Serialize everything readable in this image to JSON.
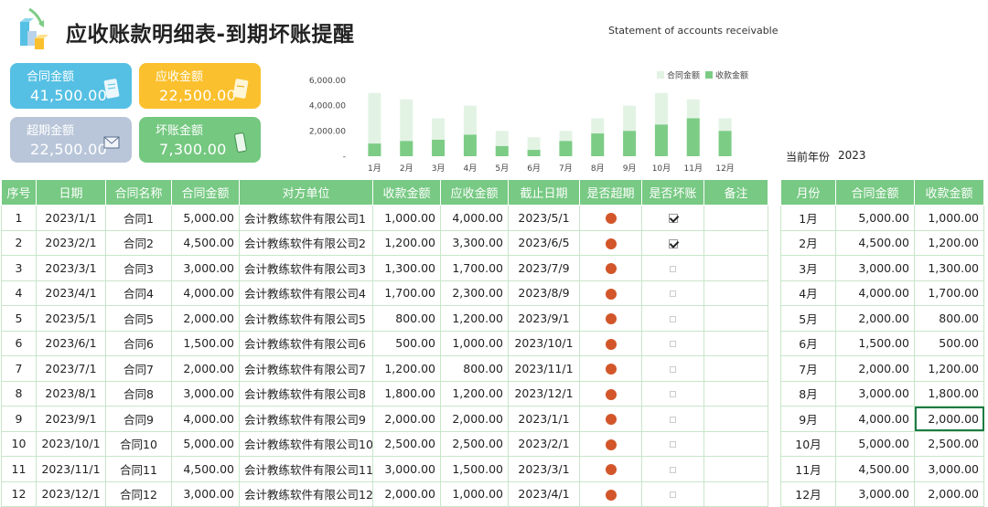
{
  "header": {
    "title": "应收账款明细表-到期坏账提醒",
    "subtitle": "Statement of accounts receivable"
  },
  "cards": [
    {
      "id": "contract",
      "label": "合同金额",
      "value": "41,500.00",
      "color": "#55c0e4"
    },
    {
      "id": "receivable",
      "label": "应收金额",
      "value": "22,500.00",
      "color": "#fbc02d"
    },
    {
      "id": "overdue",
      "label": "超期金额",
      "value": "22,500.00",
      "color": "#b9c6d9"
    },
    {
      "id": "baddebt",
      "label": "坏账金额",
      "value": "7,300.00",
      "color": "#74c880"
    }
  ],
  "current_year": {
    "label": "当前年份",
    "value": "2023"
  },
  "chart_data": {
    "type": "bar",
    "categories": [
      "1月",
      "2月",
      "3月",
      "4月",
      "5月",
      "6月",
      "7月",
      "8月",
      "9月",
      "10月",
      "11月",
      "12月"
    ],
    "series": [
      {
        "name": "合同金额",
        "color": "#e2f3e4",
        "values": [
          5000,
          4500,
          3000,
          4000,
          2000,
          1500,
          2000,
          3000,
          4000,
          5000,
          4500,
          3000
        ]
      },
      {
        "name": "收款金额",
        "color": "#7ccc85",
        "values": [
          1000,
          1200,
          1300,
          1700,
          800,
          500,
          1200,
          1800,
          2000,
          2500,
          3000,
          2000
        ]
      }
    ],
    "y_ticks": [
      "6,000.00",
      "4,000.00",
      "2,000.00",
      "-"
    ],
    "ylim": [
      0,
      6000
    ],
    "legend_position": "top-right",
    "grid": false
  },
  "main_table": {
    "headers": [
      "序号",
      "日期",
      "合同名称",
      "合同金额",
      "对方单位",
      "收款金额",
      "应收金额",
      "截止日期",
      "是否超期",
      "是否坏账",
      "备注"
    ],
    "rows": [
      {
        "no": "1",
        "date": "2023/1/1",
        "name": "合同1",
        "amount": "5,000.00",
        "party": "会计教练软件有限公司1",
        "received": "1,000.00",
        "receivable": "4,000.00",
        "due": "2023/5/1",
        "overdue": true,
        "bad": true
      },
      {
        "no": "2",
        "date": "2023/2/1",
        "name": "合同2",
        "amount": "4,500.00",
        "party": "会计教练软件有限公司2",
        "received": "1,200.00",
        "receivable": "3,300.00",
        "due": "2023/6/5",
        "overdue": true,
        "bad": true
      },
      {
        "no": "3",
        "date": "2023/3/1",
        "name": "合同3",
        "amount": "3,000.00",
        "party": "会计教练软件有限公司3",
        "received": "1,300.00",
        "receivable": "1,700.00",
        "due": "2023/7/9",
        "overdue": true,
        "bad": false
      },
      {
        "no": "4",
        "date": "2023/4/1",
        "name": "合同4",
        "amount": "4,000.00",
        "party": "会计教练软件有限公司4",
        "received": "1,700.00",
        "receivable": "2,300.00",
        "due": "2023/8/9",
        "overdue": true,
        "bad": false
      },
      {
        "no": "5",
        "date": "2023/5/1",
        "name": "合同5",
        "amount": "2,000.00",
        "party": "会计教练软件有限公司5",
        "received": "800.00",
        "receivable": "1,200.00",
        "due": "2023/9/1",
        "overdue": true,
        "bad": false
      },
      {
        "no": "6",
        "date": "2023/6/1",
        "name": "合同6",
        "amount": "1,500.00",
        "party": "会计教练软件有限公司6",
        "received": "500.00",
        "receivable": "1,000.00",
        "due": "2023/10/1",
        "overdue": true,
        "bad": false
      },
      {
        "no": "7",
        "date": "2023/7/1",
        "name": "合同7",
        "amount": "2,000.00",
        "party": "会计教练软件有限公司7",
        "received": "1,200.00",
        "receivable": "800.00",
        "due": "2023/11/1",
        "overdue": true,
        "bad": false
      },
      {
        "no": "8",
        "date": "2023/8/1",
        "name": "合同8",
        "amount": "3,000.00",
        "party": "会计教练软件有限公司8",
        "received": "1,800.00",
        "receivable": "1,200.00",
        "due": "2023/12/1",
        "overdue": true,
        "bad": false
      },
      {
        "no": "9",
        "date": "2023/9/1",
        "name": "合同9",
        "amount": "4,000.00",
        "party": "会计教练软件有限公司9",
        "received": "2,000.00",
        "receivable": "2,000.00",
        "due": "2023/1/1",
        "overdue": true,
        "bad": false
      },
      {
        "no": "10",
        "date": "2023/10/1",
        "name": "合同10",
        "amount": "5,000.00",
        "party": "会计教练软件有限公司10",
        "received": "2,500.00",
        "receivable": "2,500.00",
        "due": "2023/2/1",
        "overdue": true,
        "bad": false
      },
      {
        "no": "11",
        "date": "2023/11/1",
        "name": "合同11",
        "amount": "4,500.00",
        "party": "会计教练软件有限公司11",
        "received": "3,000.00",
        "receivable": "1,500.00",
        "due": "2023/3/1",
        "overdue": true,
        "bad": false
      },
      {
        "no": "12",
        "date": "2023/12/1",
        "name": "合同12",
        "amount": "3,000.00",
        "party": "会计教练软件有限公司12",
        "received": "2,000.00",
        "receivable": "1,000.00",
        "due": "2023/4/1",
        "overdue": true,
        "bad": false
      }
    ]
  },
  "month_table": {
    "headers": [
      "月份",
      "合同金额",
      "收款金额"
    ],
    "rows": [
      {
        "month": "1月",
        "amount": "5,000.00",
        "received": "1,000.00"
      },
      {
        "month": "2月",
        "amount": "4,500.00",
        "received": "1,200.00"
      },
      {
        "month": "3月",
        "amount": "3,000.00",
        "received": "1,300.00"
      },
      {
        "month": "4月",
        "amount": "4,000.00",
        "received": "1,700.00"
      },
      {
        "month": "5月",
        "amount": "2,000.00",
        "received": "800.00"
      },
      {
        "month": "6月",
        "amount": "1,500.00",
        "received": "500.00"
      },
      {
        "month": "7月",
        "amount": "2,000.00",
        "received": "1,200.00"
      },
      {
        "month": "8月",
        "amount": "3,000.00",
        "received": "1,800.00"
      },
      {
        "month": "9月",
        "amount": "4,000.00",
        "received": "2,000.00"
      },
      {
        "month": "10月",
        "amount": "5,000.00",
        "received": "2,500.00"
      },
      {
        "month": "11月",
        "amount": "4,500.00",
        "received": "3,000.00"
      },
      {
        "month": "12月",
        "amount": "3,000.00",
        "received": "2,000.00"
      }
    ]
  }
}
